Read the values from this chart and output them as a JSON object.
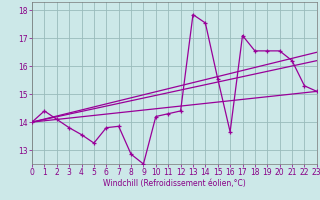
{
  "title": "",
  "xlabel": "Windchill (Refroidissement éolien,°C)",
  "background_color": "#cce8e8",
  "line_color": "#990099",
  "grid_color": "#99bbbb",
  "hours": [
    0,
    1,
    2,
    3,
    4,
    5,
    6,
    7,
    8,
    9,
    10,
    11,
    12,
    13,
    14,
    15,
    16,
    17,
    18,
    19,
    20,
    21,
    22,
    23
  ],
  "windchill": [
    14.0,
    14.4,
    14.1,
    13.8,
    13.55,
    13.25,
    13.8,
    13.85,
    12.85,
    12.5,
    14.2,
    14.3,
    14.4,
    17.85,
    17.55,
    15.55,
    13.65,
    17.1,
    16.55,
    16.55,
    16.55,
    16.2,
    15.3,
    15.1
  ],
  "trend1_x": [
    0,
    23
  ],
  "trend1_y": [
    14.0,
    15.1
  ],
  "trend2_x": [
    0,
    23
  ],
  "trend2_y": [
    14.0,
    16.5
  ],
  "trend3_x": [
    0,
    23
  ],
  "trend3_y": [
    14.0,
    16.2
  ],
  "ylim": [
    12.5,
    18.3
  ],
  "xlim": [
    0,
    23
  ],
  "yticks": [
    13,
    14,
    15,
    16,
    17,
    18
  ],
  "xticks": [
    0,
    1,
    2,
    3,
    4,
    5,
    6,
    7,
    8,
    9,
    10,
    11,
    12,
    13,
    14,
    15,
    16,
    17,
    18,
    19,
    20,
    21,
    22,
    23
  ],
  "tick_color": "#880088",
  "xlabel_fontsize": 5.5,
  "tick_fontsize": 5.5
}
